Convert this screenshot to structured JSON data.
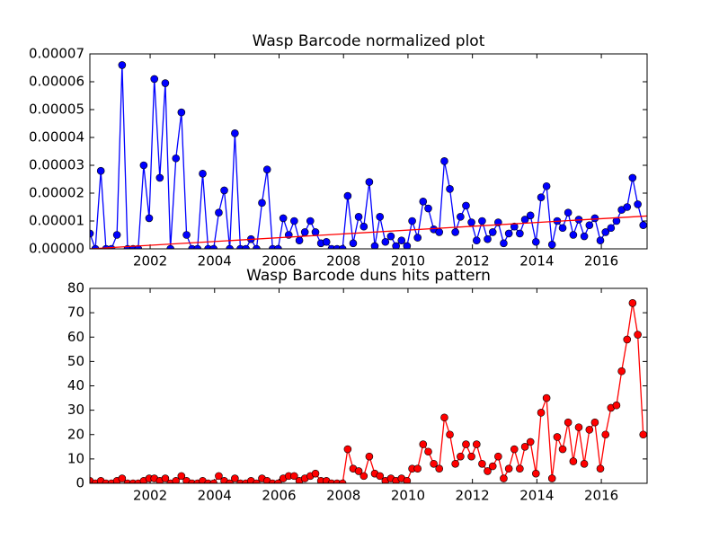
{
  "chart_data": [
    {
      "type": "line",
      "title": "Wasp Barcode normalized plot",
      "xlim": [
        2000.13,
        2017.42
      ],
      "xticks": [
        2002,
        2004,
        2006,
        2008,
        2010,
        2012,
        2014,
        2016
      ],
      "ylim": [
        0,
        7e-05
      ],
      "yticks": [
        {
          "value": 0,
          "label": "0.00000"
        },
        {
          "value": 1e-05,
          "label": "0.00001"
        },
        {
          "value": 2e-05,
          "label": "0.00002"
        },
        {
          "value": 3e-05,
          "label": "0.00003"
        },
        {
          "value": 4e-05,
          "label": "0.00004"
        },
        {
          "value": 5e-05,
          "label": "0.00005"
        },
        {
          "value": 6e-05,
          "label": "0.00006"
        },
        {
          "value": 7e-05,
          "label": "0.00007"
        }
      ],
      "x": [
        2000.13,
        2000.3,
        2000.47,
        2000.63,
        2000.8,
        2000.97,
        2001.13,
        2001.3,
        2001.47,
        2001.63,
        2001.8,
        2001.97,
        2002.13,
        2002.3,
        2002.47,
        2002.63,
        2002.8,
        2002.97,
        2003.13,
        2003.3,
        2003.47,
        2003.63,
        2003.8,
        2003.97,
        2004.13,
        2004.3,
        2004.47,
        2004.63,
        2004.8,
        2004.97,
        2005.13,
        2005.3,
        2005.47,
        2005.63,
        2005.8,
        2005.97,
        2006.13,
        2006.3,
        2006.47,
        2006.63,
        2006.8,
        2006.97,
        2007.13,
        2007.3,
        2007.47,
        2007.63,
        2007.8,
        2007.97,
        2008.13,
        2008.3,
        2008.47,
        2008.63,
        2008.8,
        2008.97,
        2009.13,
        2009.3,
        2009.47,
        2009.63,
        2009.8,
        2009.97,
        2010.13,
        2010.3,
        2010.47,
        2010.63,
        2010.8,
        2010.97,
        2011.13,
        2011.3,
        2011.47,
        2011.63,
        2011.8,
        2011.97,
        2012.13,
        2012.3,
        2012.47,
        2012.63,
        2012.8,
        2012.97,
        2013.13,
        2013.3,
        2013.47,
        2013.63,
        2013.8,
        2013.97,
        2014.13,
        2014.3,
        2014.47,
        2014.63,
        2014.8,
        2014.97,
        2015.13,
        2015.3,
        2015.47,
        2015.63,
        2015.8,
        2015.97,
        2016.13,
        2016.3,
        2016.47,
        2016.63,
        2016.8,
        2016.97,
        2017.13,
        2017.3
      ],
      "series": [
        {
          "color": "#0000ff",
          "markers": true,
          "values": [
            5.5e-06,
            0,
            2.8e-05,
            0,
            0,
            5e-06,
            6.6e-05,
            0,
            0,
            0,
            3e-05,
            1.1e-05,
            6.1e-05,
            2.55e-05,
            5.95e-05,
            0,
            3.25e-05,
            4.9e-05,
            5e-06,
            0,
            0,
            2.7e-05,
            0,
            0,
            1.3e-05,
            2.1e-05,
            0,
            4.15e-05,
            0,
            0,
            3.5e-06,
            0,
            1.65e-05,
            2.85e-05,
            0,
            0,
            1.1e-05,
            5e-06,
            1e-05,
            3e-06,
            6e-06,
            1e-05,
            6e-06,
            2e-06,
            2.5e-06,
            0,
            0,
            0,
            1.9e-05,
            2e-06,
            1.15e-05,
            8e-06,
            2.4e-05,
            1e-06,
            1.15e-05,
            2.5e-06,
            4.5e-06,
            1e-06,
            3e-06,
            1e-06,
            1e-05,
            4e-06,
            1.7e-05,
            1.45e-05,
            7e-06,
            6e-06,
            3.15e-05,
            2.15e-05,
            6e-06,
            1.15e-05,
            1.55e-05,
            9.5e-06,
            3e-06,
            1e-05,
            3.5e-06,
            6e-06,
            9.5e-06,
            2e-06,
            5.5e-06,
            8e-06,
            5.5e-06,
            1.05e-05,
            1.2e-05,
            2.5e-06,
            1.85e-05,
            2.25e-05,
            1.5e-06,
            1e-05,
            7.5e-06,
            1.3e-05,
            5e-06,
            1.05e-05,
            4.5e-06,
            8.5e-06,
            1.1e-05,
            3e-06,
            6e-06,
            7.5e-06,
            1e-05,
            1.4e-05,
            1.5e-05,
            2.55e-05,
            1.6e-05,
            8.5e-06
          ]
        },
        {
          "color": "#ff0000",
          "markers": false,
          "x": [
            2000.13,
            2017.42
          ],
          "values": [
            0,
            1.18e-05
          ]
        }
      ]
    },
    {
      "type": "line",
      "title": "Wasp Barcode duns hits pattern",
      "xlim": [
        2000.13,
        2017.42
      ],
      "xticks": [
        2002,
        2004,
        2006,
        2008,
        2010,
        2012,
        2014,
        2016
      ],
      "ylim": [
        0,
        80
      ],
      "yticks": [
        0,
        10,
        20,
        30,
        40,
        50,
        60,
        70,
        80
      ],
      "x": [
        2000.13,
        2000.3,
        2000.47,
        2000.63,
        2000.8,
        2000.97,
        2001.13,
        2001.3,
        2001.47,
        2001.63,
        2001.8,
        2001.97,
        2002.13,
        2002.3,
        2002.47,
        2002.63,
        2002.8,
        2002.97,
        2003.13,
        2003.3,
        2003.47,
        2003.63,
        2003.8,
        2003.97,
        2004.13,
        2004.3,
        2004.47,
        2004.63,
        2004.8,
        2004.97,
        2005.13,
        2005.3,
        2005.47,
        2005.63,
        2005.8,
        2005.97,
        2006.13,
        2006.3,
        2006.47,
        2006.63,
        2006.8,
        2006.97,
        2007.13,
        2007.3,
        2007.47,
        2007.63,
        2007.8,
        2007.97,
        2008.13,
        2008.3,
        2008.47,
        2008.63,
        2008.8,
        2008.97,
        2009.13,
        2009.3,
        2009.47,
        2009.63,
        2009.8,
        2009.97,
        2010.13,
        2010.3,
        2010.47,
        2010.63,
        2010.8,
        2010.97,
        2011.13,
        2011.3,
        2011.47,
        2011.63,
        2011.8,
        2011.97,
        2012.13,
        2012.3,
        2012.47,
        2012.63,
        2012.8,
        2012.97,
        2013.13,
        2013.3,
        2013.47,
        2013.63,
        2013.8,
        2013.97,
        2014.13,
        2014.3,
        2014.47,
        2014.63,
        2014.8,
        2014.97,
        2015.13,
        2015.3,
        2015.47,
        2015.63,
        2015.8,
        2015.97,
        2016.13,
        2016.3,
        2016.47,
        2016.63,
        2016.8,
        2016.97,
        2017.13,
        2017.3
      ],
      "series": [
        {
          "color": "#ff0000",
          "markers": true,
          "values": [
            1,
            0,
            1,
            0,
            0,
            1,
            2,
            0,
            0,
            0,
            1,
            2,
            2,
            1,
            2,
            0,
            1,
            3,
            1,
            0,
            0,
            1,
            0,
            0,
            3,
            1,
            0,
            2,
            0,
            0,
            1,
            0,
            2,
            1,
            0,
            0,
            2,
            3,
            3,
            1,
            2,
            3,
            4,
            1,
            1,
            0,
            0,
            0,
            14,
            6,
            5,
            3,
            11,
            4,
            3,
            1,
            2,
            1,
            2,
            1,
            6,
            6,
            16,
            13,
            8,
            6,
            27,
            20,
            8,
            11,
            16,
            11,
            16,
            8,
            5,
            7,
            11,
            2,
            6,
            14,
            6,
            15,
            17,
            4,
            29,
            35,
            2,
            19,
            14,
            25,
            9,
            23,
            8,
            22,
            25,
            6,
            20,
            31,
            32,
            46,
            59,
            74,
            61,
            20
          ]
        }
      ]
    }
  ]
}
